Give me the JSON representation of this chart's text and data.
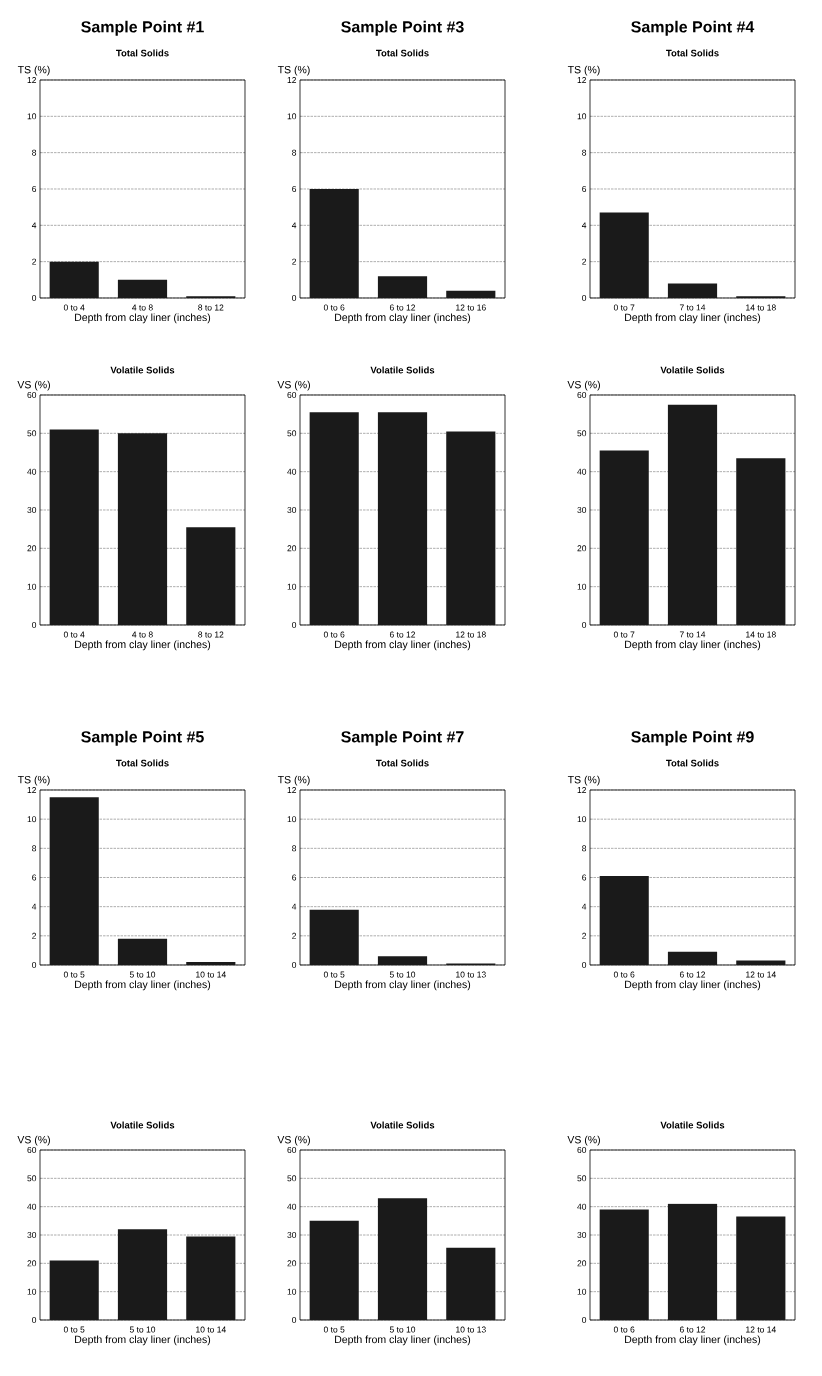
{
  "chart_data": [
    {
      "type": "bar",
      "title": "Sample Point #1",
      "subtitle": "Total Solids",
      "ylabel": "TS (%)",
      "xlabel": "Depth from clay liner (inches)",
      "categories": [
        "0 to 4",
        "4 to 8",
        "8 to 12"
      ],
      "values": [
        2.0,
        1.0,
        0.1
      ],
      "color": "#1a1a1a",
      "ylim": [
        0,
        12
      ],
      "yticks": [
        0,
        2,
        4,
        6,
        8,
        10,
        12
      ],
      "grid": "y"
    },
    {
      "type": "bar",
      "title": "Sample Point #3",
      "subtitle": "Total Solids",
      "ylabel": "TS (%)",
      "xlabel": "Depth from clay liner (inches)",
      "categories": [
        "0 to 6",
        "6 to 12",
        "12 to 16"
      ],
      "values": [
        6.0,
        1.2,
        0.4
      ],
      "color": "#1a1a1a",
      "ylim": [
        0,
        12
      ],
      "yticks": [
        0,
        2,
        4,
        6,
        8,
        10,
        12
      ],
      "grid": "y"
    },
    {
      "type": "bar",
      "title": "Sample Point #4",
      "subtitle": "Total Solids",
      "ylabel": "TS (%)",
      "xlabel": "Depth from clay liner (inches)",
      "categories": [
        "0 to 7",
        "7 to 14",
        "14 to 18"
      ],
      "values": [
        4.7,
        0.8,
        0.1
      ],
      "color": "#1a1a1a",
      "ylim": [
        0,
        12
      ],
      "yticks": [
        0,
        2,
        4,
        6,
        8,
        10,
        12
      ],
      "grid": "y"
    },
    {
      "type": "bar",
      "title": "Volatile Solids",
      "ylabel": "VS (%)",
      "xlabel": "Depth from clay liner (inches)",
      "categories": [
        "0 to 4",
        "4 to 8",
        "8 to 12"
      ],
      "values": [
        51,
        50,
        25.5
      ],
      "color": "#1a1a1a",
      "ylim": [
        0,
        60
      ],
      "yticks": [
        0,
        10,
        20,
        30,
        40,
        50,
        60
      ],
      "grid": "y"
    },
    {
      "type": "bar",
      "title": "Volatile Solids",
      "ylabel": "VS (%)",
      "xlabel": "Depth from clay liner (inches)",
      "categories": [
        "0 to 6",
        "6 to 12",
        "12 to 18"
      ],
      "values": [
        55.5,
        55.5,
        50.5
      ],
      "color": "#1a1a1a",
      "ylim": [
        0,
        60
      ],
      "yticks": [
        0,
        10,
        20,
        30,
        40,
        50,
        60
      ],
      "grid": "y"
    },
    {
      "type": "bar",
      "title": "Volatile Solids",
      "ylabel": "VS (%)",
      "xlabel": "Depth from clay liner (inches)",
      "categories": [
        "0 to 7",
        "7 to 14",
        "14 to 18"
      ],
      "values": [
        45.5,
        57.5,
        43.5
      ],
      "color": "#1a1a1a",
      "ylim": [
        0,
        60
      ],
      "yticks": [
        0,
        10,
        20,
        30,
        40,
        50,
        60
      ],
      "grid": "y"
    },
    {
      "type": "bar",
      "title": "Sample Point #5",
      "subtitle": "Total Solids",
      "ylabel": "TS (%)",
      "xlabel": "Depth from clay liner (inches)",
      "categories": [
        "0 to 5",
        "5 to 10",
        "10 to 14"
      ],
      "values": [
        11.5,
        1.8,
        0.2
      ],
      "color": "#1a1a1a",
      "ylim": [
        0,
        12
      ],
      "yticks": [
        0,
        2,
        4,
        6,
        8,
        10,
        12
      ],
      "grid": "y"
    },
    {
      "type": "bar",
      "title": "Sample Point #7",
      "subtitle": "Total Solids",
      "ylabel": "TS (%)",
      "xlabel": "Depth from clay liner (inches)",
      "categories": [
        "0 to 5",
        "5 to 10",
        "10 to 13"
      ],
      "values": [
        3.8,
        0.6,
        0.1
      ],
      "color": "#1a1a1a",
      "ylim": [
        0,
        12
      ],
      "yticks": [
        0,
        2,
        4,
        6,
        8,
        10,
        12
      ],
      "grid": "y"
    },
    {
      "type": "bar",
      "title": "Sample Point #9",
      "subtitle": "Total Solids",
      "ylabel": "TS (%)",
      "xlabel": "Depth from clay liner (inches)",
      "categories": [
        "0 to 6",
        "6 to 12",
        "12 to 14"
      ],
      "values": [
        6.1,
        0.9,
        0.3
      ],
      "color": "#1a1a1a",
      "ylim": [
        0,
        12
      ],
      "yticks": [
        0,
        2,
        4,
        6,
        8,
        10,
        12
      ],
      "grid": "y"
    },
    {
      "type": "bar",
      "title": "Volatile Solids",
      "ylabel": "VS (%)",
      "xlabel": "Depth from clay liner (inches)",
      "categories": [
        "0 to 5",
        "5 to 10",
        "10 to 14"
      ],
      "values": [
        21,
        32,
        29.5
      ],
      "color": "#1a1a1a",
      "ylim": [
        0,
        60
      ],
      "yticks": [
        0,
        10,
        20,
        30,
        40,
        50,
        60
      ],
      "grid": "y"
    },
    {
      "type": "bar",
      "title": "Volatile Solids",
      "ylabel": "VS (%)",
      "xlabel": "Depth from clay liner (inches)",
      "categories": [
        "0 to 5",
        "5 to 10",
        "10 to 13"
      ],
      "values": [
        35,
        43,
        25.5
      ],
      "color": "#1a1a1a",
      "ylim": [
        0,
        60
      ],
      "yticks": [
        0,
        10,
        20,
        30,
        40,
        50,
        60
      ],
      "grid": "y"
    },
    {
      "type": "bar",
      "title": "Volatile Solids",
      "ylabel": "VS (%)",
      "xlabel": "Depth from clay liner (inches)",
      "categories": [
        "0 to 6",
        "6 to 12",
        "12 to 14"
      ],
      "values": [
        39,
        41,
        36.5
      ],
      "color": "#1a1a1a",
      "ylim": [
        0,
        60
      ],
      "yticks": [
        0,
        10,
        20,
        30,
        40,
        50,
        60
      ],
      "grid": "y"
    }
  ]
}
